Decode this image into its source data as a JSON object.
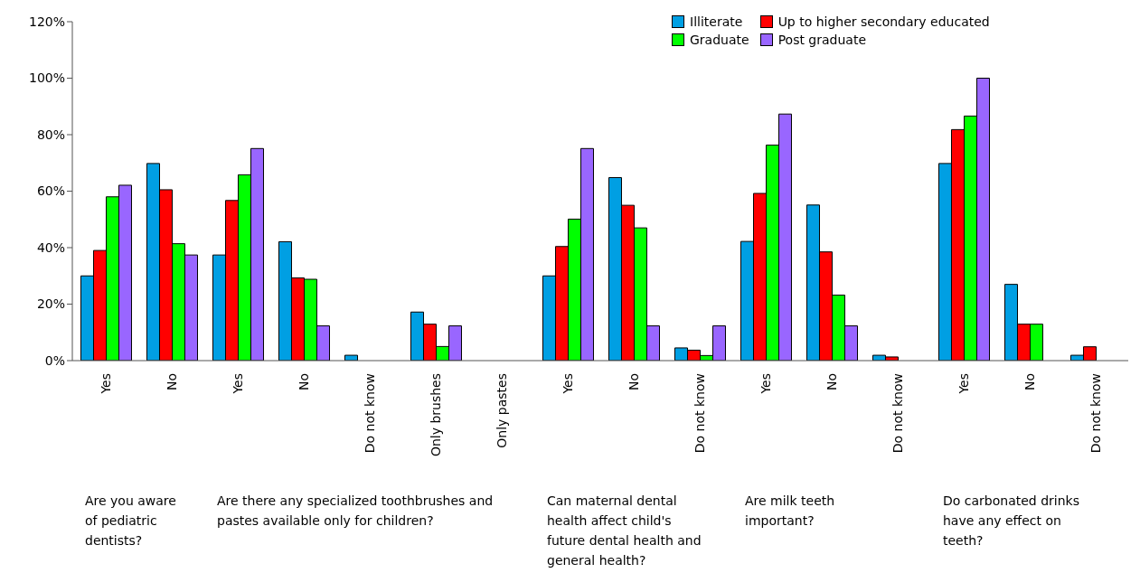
{
  "chart_data": {
    "type": "bar",
    "categories": [
      "Yes",
      "No",
      "Yes",
      "No",
      "Do not know",
      "Only brushes",
      "Only pastes",
      "Yes",
      "No",
      "Do not know",
      "Yes",
      "No",
      "Do not know",
      "Yes",
      "No",
      "Do not know"
    ],
    "series": [
      {
        "name": "Illiterate",
        "color": "#009fe3",
        "values": [
          30,
          69.8,
          37.4,
          42.1,
          1.9,
          17.2,
          0,
          30,
          64.8,
          4.5,
          42.2,
          55.1,
          1.9,
          69.8,
          27,
          1.9
        ]
      },
      {
        "name": "Up to higher secondary educated",
        "color": "#ff0000",
        "values": [
          39,
          60.5,
          56.7,
          29.3,
          0,
          12.9,
          0,
          40.4,
          55,
          3.7,
          59.2,
          38.5,
          1.3,
          81.8,
          12.9,
          4.9
        ]
      },
      {
        "name": "Graduate",
        "color": "#00ff00",
        "values": [
          58,
          41.4,
          65.8,
          28.8,
          0,
          5,
          0,
          50.1,
          47,
          1.8,
          76.3,
          23.2,
          0,
          86.6,
          12.9,
          0
        ]
      },
      {
        "name": "Post graduate",
        "color": "#9966ff",
        "values": [
          62.1,
          37.4,
          75.1,
          12.3,
          0,
          12.3,
          0,
          75.1,
          12.3,
          12.3,
          87.3,
          12.3,
          0,
          100,
          0,
          0
        ]
      }
    ],
    "ylim": [
      0,
      120
    ],
    "yticks": [
      {
        "value": 0,
        "label": "0%"
      },
      {
        "value": 20,
        "label": "20%"
      },
      {
        "value": 40,
        "label": "40%"
      },
      {
        "value": 60,
        "label": "60%"
      },
      {
        "value": 80,
        "label": "80%"
      },
      {
        "value": 100,
        "label": "100%"
      },
      {
        "value": 120,
        "label": "120%"
      }
    ],
    "grid": false,
    "legend": "top right",
    "annotations": [
      "Are you aware of pediatric dentists?",
      "Are there any specialized toothbrushes and pastes available only for children?",
      "Can maternal dental health affect child's future dental health and general health?",
      "Are milk teeth important?",
      "Do carbonated drinks have any effect on teeth?"
    ]
  }
}
